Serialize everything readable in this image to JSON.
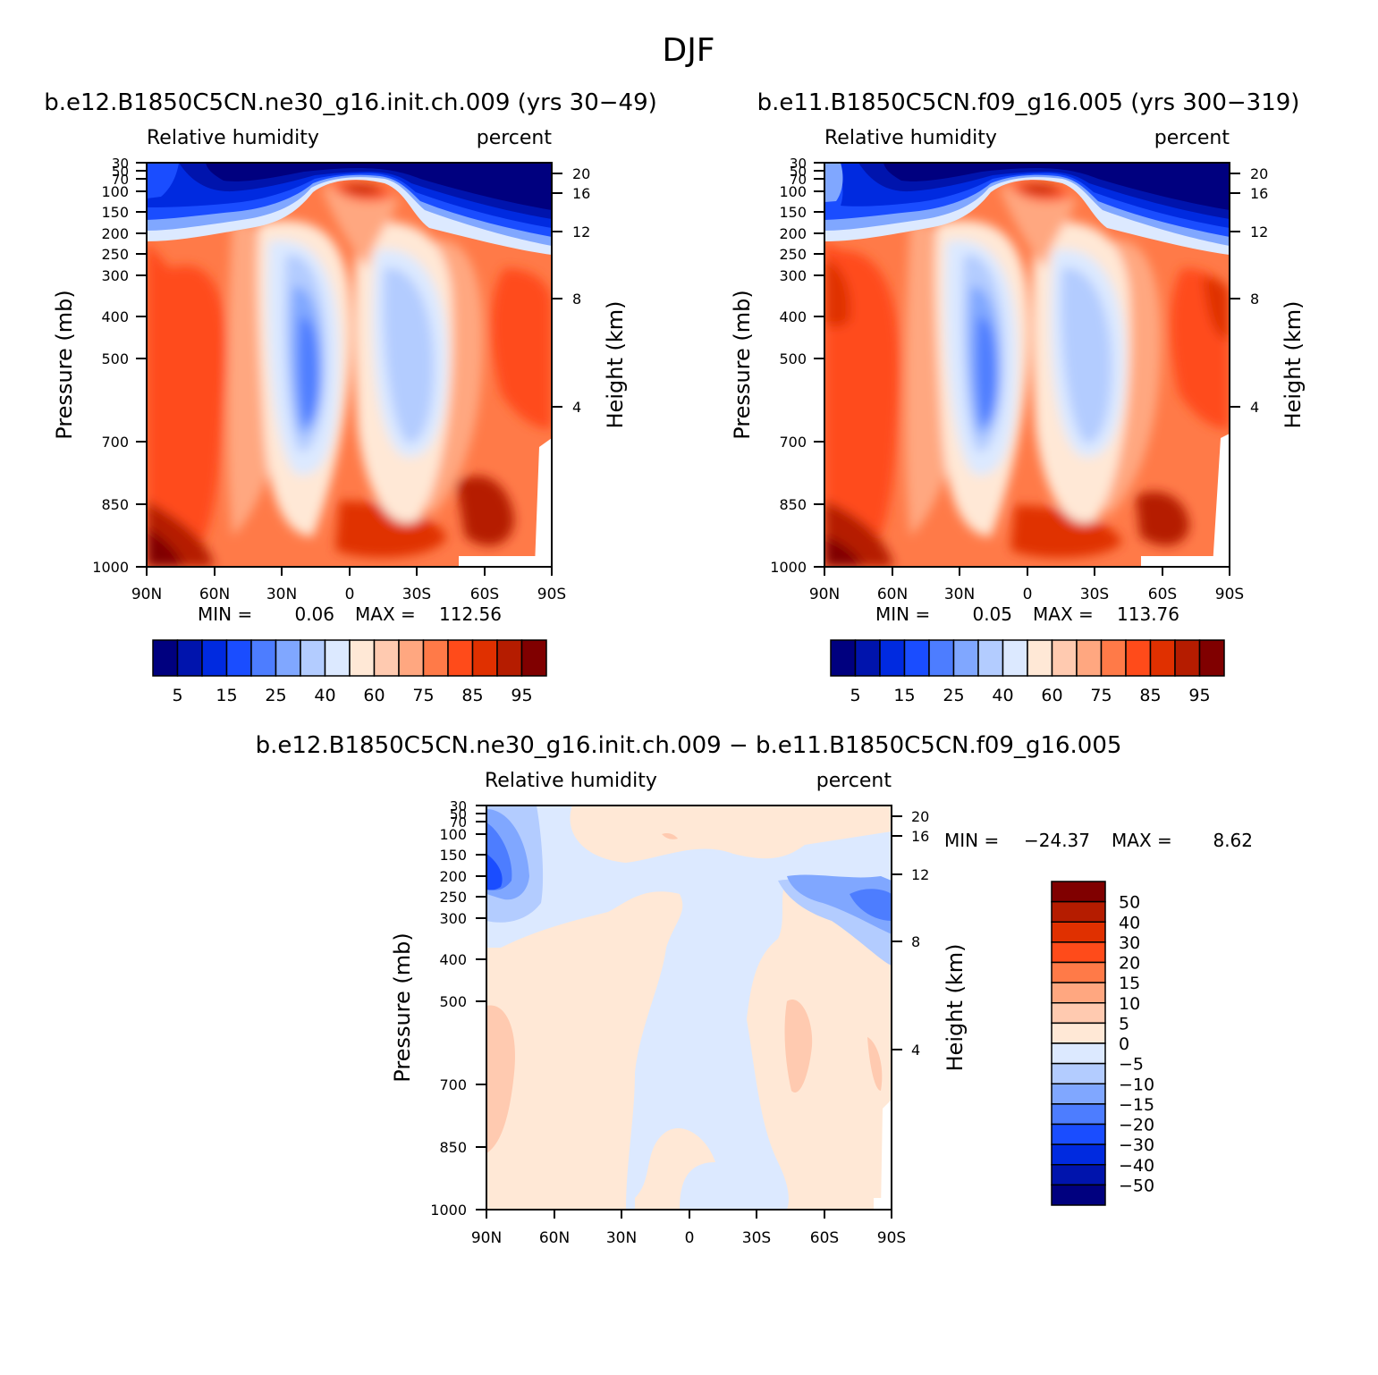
{
  "figure_title": "DJF",
  "panels": [
    {
      "id": "model",
      "title": "b.e12.B1850C5CN.ne30_g16.init.ch.009 (yrs 30-49)",
      "left_label": "Relative humidity",
      "right_label": "percent",
      "ylabel": "Pressure (mb)",
      "ylabel_right": "Height (km)",
      "min_label": "MIN =",
      "min_value": "0.06",
      "max_label": "MAX =",
      "max_value": "112.56"
    },
    {
      "id": "control",
      "title": "b.e11.B1850C5CN.f09_g16.005 (yrs 300-319)",
      "left_label": "Relative humidity",
      "right_label": "percent",
      "ylabel": "Pressure (mb)",
      "ylabel_right": "Height (km)",
      "min_label": "MIN =",
      "min_value": "0.05",
      "max_label": "MAX =",
      "max_value": "113.76"
    },
    {
      "id": "difference",
      "title": "b.e12.B1850C5CN.ne30_g16.init.ch.009 - b.e11.B1850C5CN.f09_g16.005",
      "left_label": "Relative humidity",
      "right_label": "percent",
      "ylabel": "Pressure (mb)",
      "ylabel_right": "Height (km)",
      "min_label": "MIN =",
      "min_value": "-24.37",
      "max_label": "MAX =",
      "max_value": "8.62"
    }
  ],
  "chart_data": {
    "type": "heatmap",
    "x_ticks": [
      "90N",
      "60N",
      "30N",
      "0",
      "30S",
      "60S",
      "90S"
    ],
    "x_values": [
      90,
      60,
      30,
      0,
      -30,
      -60,
      -90
    ],
    "y_ticks_pressure": [
      30,
      50,
      70,
      100,
      150,
      200,
      250,
      300,
      400,
      500,
      700,
      850,
      1000
    ],
    "y_ticks_height_km": [
      20,
      16,
      12,
      8,
      4
    ],
    "colorbar_main": {
      "labels": [
        "5",
        "15",
        "25",
        "40",
        "60",
        "75",
        "85",
        "95"
      ],
      "colors": [
        "#00007f",
        "#0014ad",
        "#002ae0",
        "#1a4dff",
        "#4d7dff",
        "#80a7ff",
        "#b3ccff",
        "#dce9ff",
        "#ffe8d6",
        "#ffcab0",
        "#ffa780",
        "#ff7a48",
        "#ff4b1a",
        "#e03000",
        "#b51c00",
        "#800000"
      ]
    },
    "colorbar_diff": {
      "labels": [
        "50",
        "40",
        "30",
        "20",
        "15",
        "10",
        "5",
        "0",
        "-5",
        "-10",
        "-15",
        "-20",
        "-30",
        "-40",
        "-50"
      ],
      "colors": [
        "#800000",
        "#b51c00",
        "#e03000",
        "#ff4b1a",
        "#ff7a48",
        "#ffa780",
        "#ffcab0",
        "#ffe8d6",
        "#dce9ff",
        "#b3ccff",
        "#80a7ff",
        "#4d7dff",
        "#1a4dff",
        "#002ae0",
        "#0014ad",
        "#00007f"
      ]
    }
  }
}
